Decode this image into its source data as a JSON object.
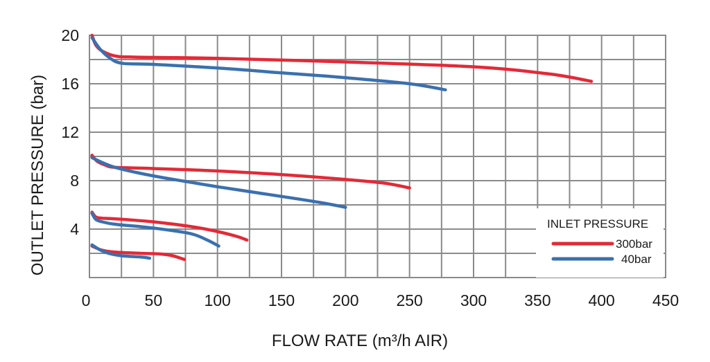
{
  "chart_data": {
    "type": "line",
    "xlabel": "FLOW RATE (m³/h AIR)",
    "ylabel": "OUTLET PRESSURE (bar)",
    "xlim": [
      0,
      450
    ],
    "ylim": [
      0,
      20
    ],
    "xticks": [
      0,
      50,
      100,
      150,
      200,
      250,
      300,
      350,
      400,
      450
    ],
    "yticks": [
      4,
      8,
      12,
      16,
      20
    ],
    "grid": true,
    "legend": {
      "title": "INLET PRESSURE",
      "placement": "bottom-right",
      "entries": [
        {
          "label": "300bar",
          "color": "#e32a36"
        },
        {
          "label": "40bar",
          "color": "#3a70b0"
        }
      ]
    },
    "series": [
      {
        "name": "300bar",
        "color": "#e32a36",
        "points": [
          [
            2,
            20
          ],
          [
            5,
            19.2
          ],
          [
            10,
            18.7
          ],
          [
            20,
            18.3
          ],
          [
            35,
            18.2
          ],
          [
            100,
            18.1
          ],
          [
            200,
            17.8
          ],
          [
            300,
            17.4
          ],
          [
            360,
            16.8
          ],
          [
            392,
            16.2
          ]
        ]
      },
      {
        "name": "40bar",
        "color": "#3a70b0",
        "points": [
          [
            2,
            19.8
          ],
          [
            8,
            18.9
          ],
          [
            15,
            18.2
          ],
          [
            25,
            17.7
          ],
          [
            50,
            17.6
          ],
          [
            100,
            17.3
          ],
          [
            150,
            16.9
          ],
          [
            200,
            16.5
          ],
          [
            250,
            16
          ],
          [
            278,
            15.5
          ]
        ]
      },
      {
        "name": "300bar",
        "color": "#e32a36",
        "points": [
          [
            2,
            10.1
          ],
          [
            6,
            9.6
          ],
          [
            12,
            9.3
          ],
          [
            20,
            9.1
          ],
          [
            50,
            9
          ],
          [
            100,
            8.8
          ],
          [
            150,
            8.5
          ],
          [
            200,
            8.1
          ],
          [
            230,
            7.8
          ],
          [
            250,
            7.4
          ]
        ]
      },
      {
        "name": "40bar",
        "color": "#3a70b0",
        "points": [
          [
            2,
            9.9
          ],
          [
            10,
            9.5
          ],
          [
            20,
            9.1
          ],
          [
            40,
            8.6
          ],
          [
            60,
            8.2
          ],
          [
            100,
            7.5
          ],
          [
            150,
            6.7
          ],
          [
            180,
            6.2
          ],
          [
            200,
            5.8
          ]
        ]
      },
      {
        "name": "300bar",
        "color": "#e32a36",
        "points": [
          [
            2,
            5.4
          ],
          [
            5,
            5
          ],
          [
            10,
            4.9
          ],
          [
            20,
            4.85
          ],
          [
            50,
            4.6
          ],
          [
            80,
            4.2
          ],
          [
            100,
            3.8
          ],
          [
            115,
            3.4
          ],
          [
            123,
            3.1
          ]
        ]
      },
      {
        "name": "40bar",
        "color": "#3a70b0",
        "points": [
          [
            2,
            5.3
          ],
          [
            5,
            4.8
          ],
          [
            10,
            4.6
          ],
          [
            20,
            4.4
          ],
          [
            40,
            4.2
          ],
          [
            60,
            3.95
          ],
          [
            80,
            3.6
          ],
          [
            92,
            3.1
          ],
          [
            101,
            2.6
          ]
        ]
      },
      {
        "name": "300bar",
        "color": "#e32a36",
        "points": [
          [
            2,
            2.6
          ],
          [
            10,
            2.25
          ],
          [
            20,
            2.1
          ],
          [
            40,
            2
          ],
          [
            55,
            1.95
          ],
          [
            65,
            1.8
          ],
          [
            74,
            1.5
          ]
        ]
      },
      {
        "name": "40bar",
        "color": "#3a70b0",
        "points": [
          [
            2,
            2.7
          ],
          [
            8,
            2.3
          ],
          [
            15,
            2
          ],
          [
            25,
            1.8
          ],
          [
            40,
            1.7
          ],
          [
            47,
            1.6
          ]
        ]
      }
    ]
  }
}
